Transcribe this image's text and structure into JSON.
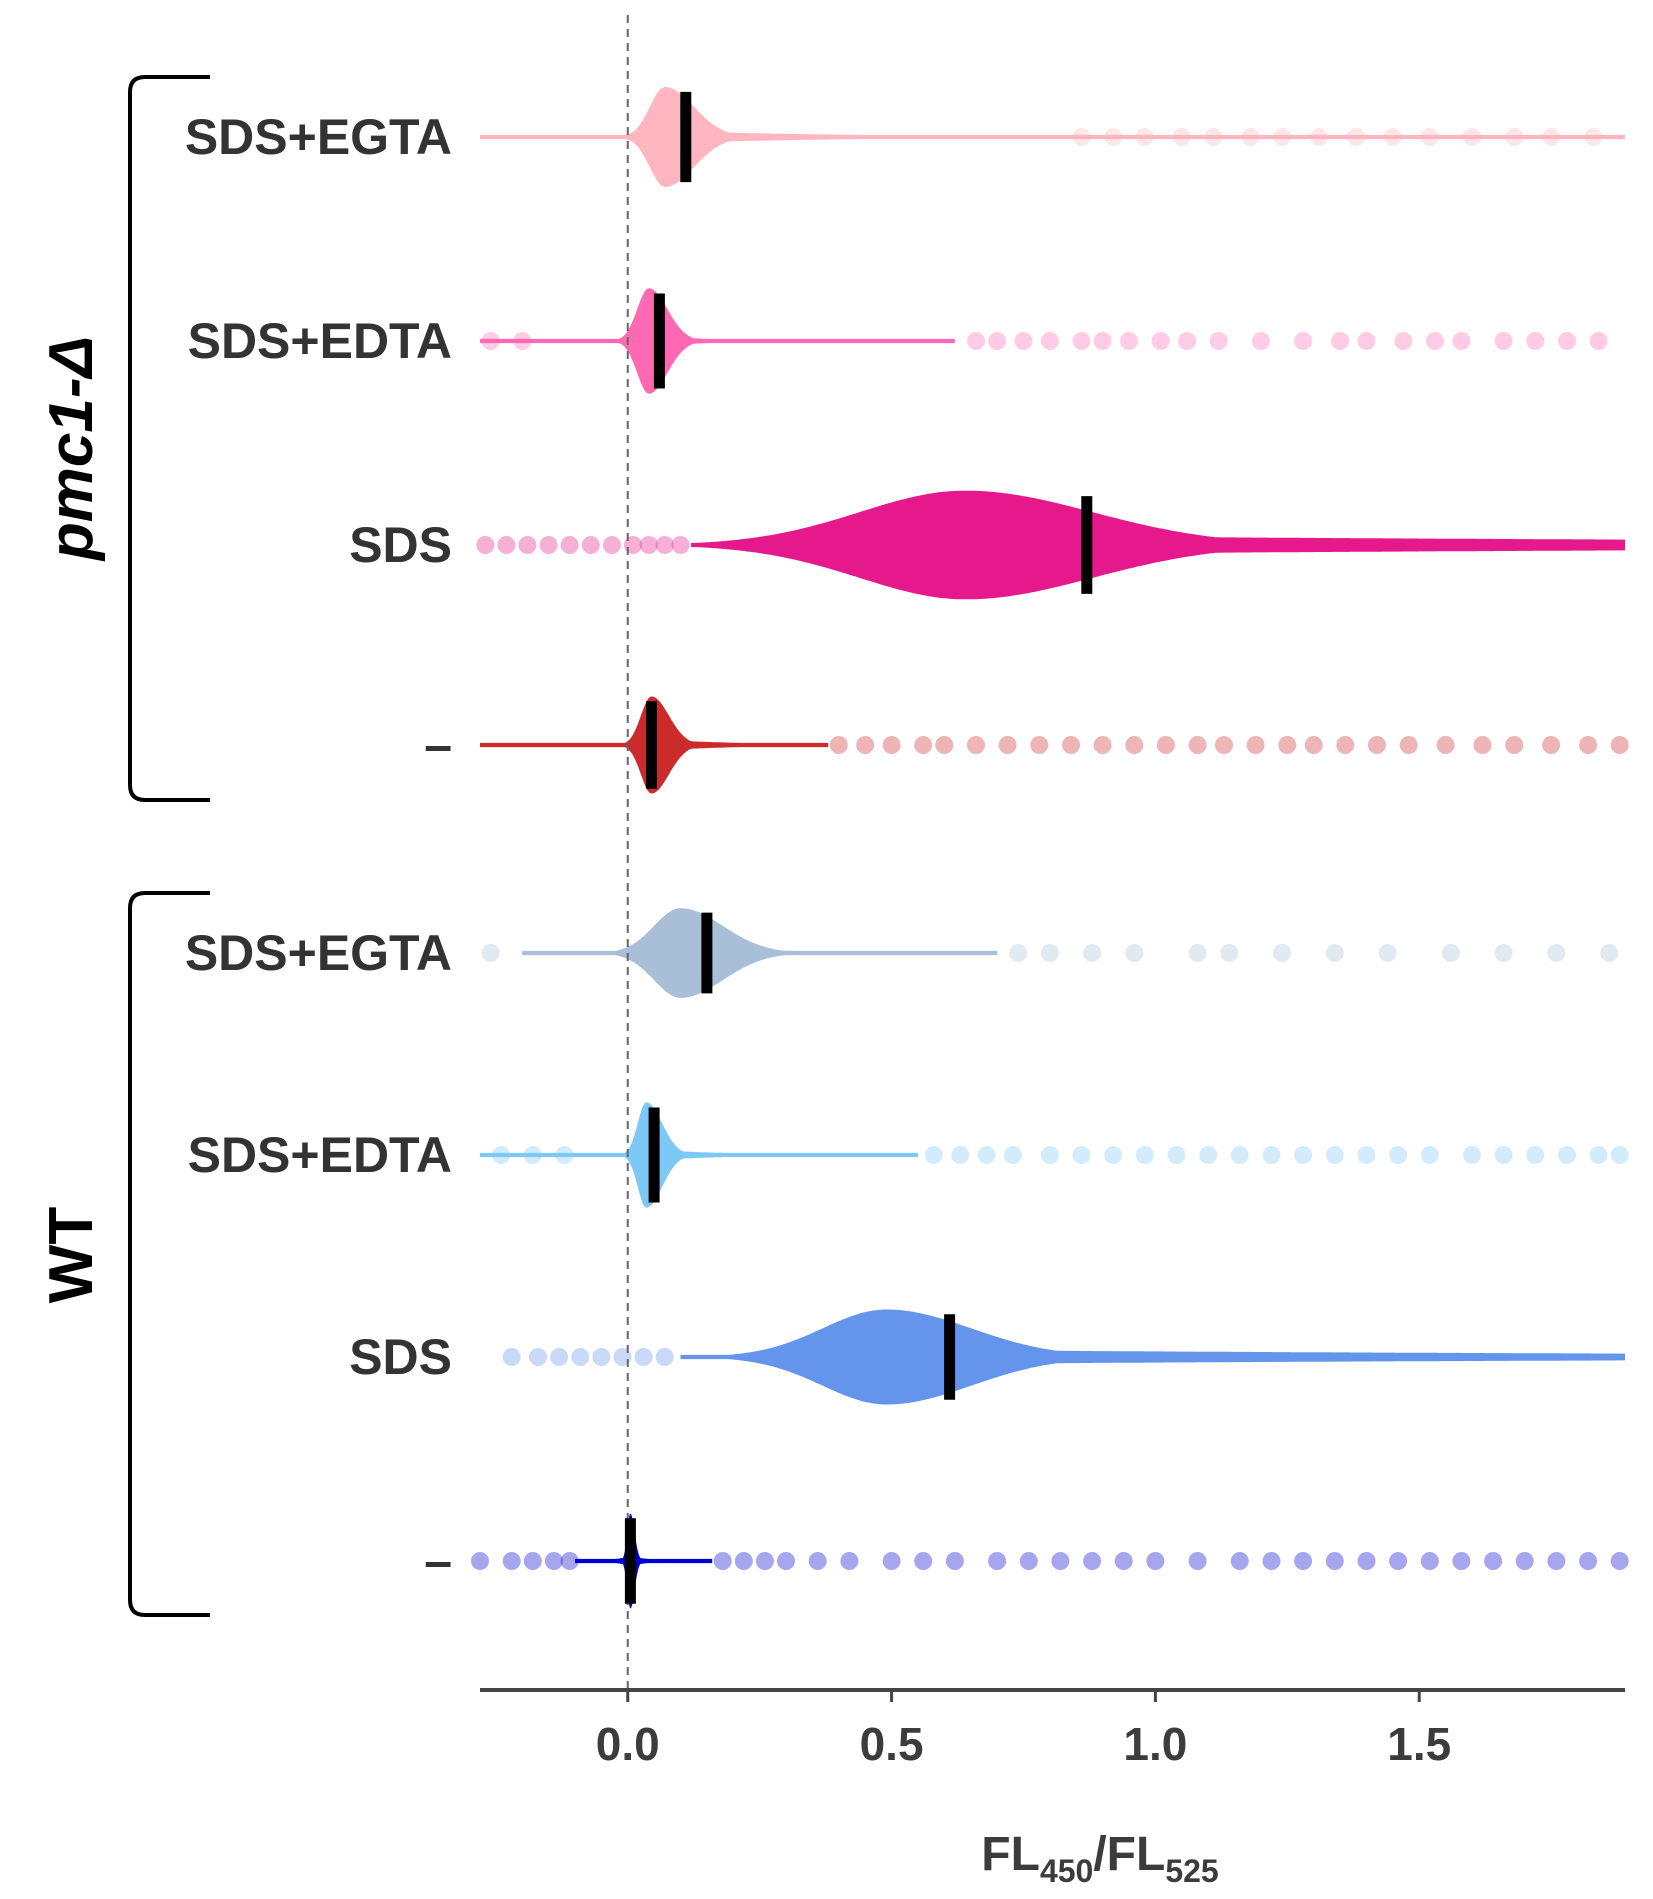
{
  "chart_data": {
    "type": "violin",
    "xlabel_main": "FL",
    "xlabel_sub1": "450",
    "xlabel_sep": "/FL",
    "xlabel_sub2": "525",
    "xlim": [
      -0.28,
      1.89
    ],
    "xticks": [
      {
        "value": 0.0,
        "label": "0.0"
      },
      {
        "value": 0.5,
        "label": "0.5"
      },
      {
        "value": 1.0,
        "label": "1.0"
      },
      {
        "value": 1.5,
        "label": "1.5"
      }
    ],
    "reference_line": 0.0,
    "groups": [
      {
        "label": "pmc1-Δ",
        "italic": true,
        "rows": [
          0,
          1,
          2,
          3
        ]
      },
      {
        "label": "WT",
        "italic": false,
        "rows": [
          4,
          5,
          6,
          7
        ]
      }
    ],
    "series": [
      {
        "label": "SDS+EGTA",
        "group": "pmc1-Δ",
        "color": "#ffb6c1",
        "median": 0.11,
        "peak": 0.07,
        "max_halfwidth": 0.095,
        "sigma_left": 0.028,
        "sigma_right": 0.055,
        "tail": 0.012,
        "tail_decay": 3.0,
        "range": [
          -0.28,
          1.89
        ],
        "outliers": [
          0.86,
          0.92,
          0.98,
          1.05,
          1.11,
          1.18,
          1.24,
          1.31,
          1.38,
          1.45,
          1.52,
          1.6,
          1.68,
          1.75,
          1.83
        ]
      },
      {
        "label": "SDS+EDTA",
        "group": "pmc1-Δ",
        "color": "#ff69b4",
        "median": 0.06,
        "peak": 0.04,
        "max_halfwidth": 0.1,
        "sigma_left": 0.022,
        "sigma_right": 0.035,
        "tail": 0.01,
        "tail_decay": 8.0,
        "range": [
          -0.28,
          0.62
        ],
        "outliers": [
          -0.26,
          -0.2,
          0.66,
          0.7,
          0.75,
          0.8,
          0.86,
          0.9,
          0.95,
          1.01,
          1.06,
          1.12,
          1.2,
          1.28,
          1.35,
          1.4,
          1.47,
          1.53,
          1.58,
          1.66,
          1.72,
          1.78,
          1.84
        ]
      },
      {
        "label": "SDS",
        "group": "pmc1-Δ",
        "color": "#e6198c",
        "median": 0.87,
        "peak": 0.64,
        "max_halfwidth": 0.103,
        "sigma_left": 0.2,
        "sigma_right": 0.24,
        "tail": 0.018,
        "tail_decay": 0.45,
        "range": [
          0.12,
          1.89
        ],
        "outliers": [
          -0.27,
          -0.23,
          -0.19,
          -0.15,
          -0.11,
          -0.07,
          -0.03,
          0.01,
          0.04,
          0.07,
          0.1
        ]
      },
      {
        "label": "-",
        "group": "pmc1-Δ",
        "color": "#cc2b2b",
        "median": 0.045,
        "peak": 0.045,
        "max_halfwidth": 0.092,
        "sigma_left": 0.02,
        "sigma_right": 0.033,
        "tail": 0.011,
        "tail_decay": 6.0,
        "range": [
          -0.28,
          0.38
        ],
        "outliers": [
          0.4,
          0.45,
          0.5,
          0.56,
          0.6,
          0.66,
          0.72,
          0.78,
          0.84,
          0.9,
          0.96,
          1.02,
          1.08,
          1.13,
          1.19,
          1.25,
          1.3,
          1.36,
          1.42,
          1.48,
          1.55,
          1.62,
          1.68,
          1.75,
          1.82,
          1.88
        ]
      },
      {
        "label": "SDS+EGTA",
        "group": "WT",
        "color": "#a9bfd8",
        "median": 0.15,
        "peak": 0.1,
        "max_halfwidth": 0.085,
        "sigma_left": 0.05,
        "sigma_right": 0.08,
        "tail": 0.012,
        "tail_decay": 5.0,
        "range": [
          -0.2,
          0.7
        ],
        "outliers": [
          -0.26,
          0.74,
          0.8,
          0.88,
          0.96,
          1.08,
          1.14,
          1.24,
          1.34,
          1.44,
          1.56,
          1.66,
          1.76,
          1.86
        ]
      },
      {
        "label": "SDS+EDTA",
        "group": "WT",
        "color": "#7ec8f7",
        "median": 0.05,
        "peak": 0.035,
        "max_halfwidth": 0.1,
        "sigma_left": 0.016,
        "sigma_right": 0.03,
        "tail": 0.011,
        "tail_decay": 7.0,
        "range": [
          -0.28,
          0.55
        ],
        "outliers": [
          -0.24,
          -0.18,
          -0.12,
          0.58,
          0.63,
          0.68,
          0.73,
          0.8,
          0.86,
          0.92,
          0.98,
          1.04,
          1.1,
          1.16,
          1.22,
          1.28,
          1.34,
          1.4,
          1.46,
          1.52,
          1.6,
          1.66,
          1.72,
          1.78,
          1.84,
          1.88
        ]
      },
      {
        "label": "SDS",
        "group": "WT",
        "color": "#6495ed",
        "median": 0.61,
        "peak": 0.49,
        "max_halfwidth": 0.09,
        "sigma_left": 0.12,
        "sigma_right": 0.16,
        "tail": 0.014,
        "tail_decay": 0.55,
        "range": [
          0.1,
          1.89
        ],
        "outliers": [
          -0.22,
          -0.17,
          -0.13,
          -0.09,
          -0.05,
          -0.01,
          0.03,
          0.07
        ]
      },
      {
        "label": "-",
        "group": "WT",
        "color": "#0000cd",
        "median": 0.005,
        "peak": 0.005,
        "max_halfwidth": 0.09,
        "sigma_left": 0.006,
        "sigma_right": 0.008,
        "tail": 0.009,
        "tail_decay": 25.0,
        "range": [
          -0.1,
          0.16
        ],
        "outliers": [
          -0.28,
          -0.22,
          -0.18,
          -0.14,
          -0.11,
          0.18,
          0.22,
          0.26,
          0.3,
          0.36,
          0.42,
          0.5,
          0.56,
          0.62,
          0.7,
          0.76,
          0.82,
          0.88,
          0.94,
          1.0,
          1.08,
          1.16,
          1.22,
          1.28,
          1.34,
          1.4,
          1.46,
          1.52,
          1.58,
          1.64,
          1.7,
          1.76,
          1.82,
          1.88
        ]
      }
    ]
  }
}
